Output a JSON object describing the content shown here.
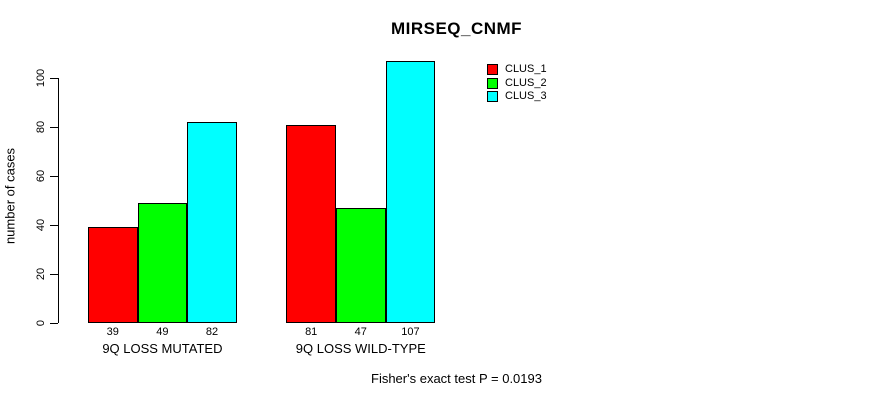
{
  "title": "MIRSEQ_CNMF",
  "ylabel": "number of cases",
  "footer": "Fisher's exact test P = 0.0193",
  "legend": {
    "items": [
      {
        "label": "CLUS_1",
        "color": "#ff0000"
      },
      {
        "label": "CLUS_2",
        "color": "#00ff00"
      },
      {
        "label": "CLUS_3",
        "color": "#00ffff"
      }
    ]
  },
  "chart_data": {
    "type": "bar",
    "grouped": true,
    "title": "MIRSEQ_CNMF",
    "xlabel": "",
    "ylabel": "number of cases",
    "categories": [
      "9Q LOSS MUTATED",
      "9Q LOSS WILD-TYPE"
    ],
    "series": [
      {
        "name": "CLUS_1",
        "color": "#ff0000",
        "values": [
          39,
          81
        ]
      },
      {
        "name": "CLUS_2",
        "color": "#00ff00",
        "values": [
          49,
          47
        ]
      },
      {
        "name": "CLUS_3",
        "color": "#00ffff",
        "values": [
          82,
          107
        ]
      }
    ],
    "bar_value_labels": [
      [
        39,
        49,
        82
      ],
      [
        81,
        47,
        107
      ]
    ],
    "yticks": [
      0,
      20,
      40,
      60,
      80,
      100
    ],
    "ylim": [
      0,
      111
    ],
    "grid": false,
    "legend_position": "top-right",
    "annotation": "Fisher's exact test P = 0.0193",
    "bar_colors": [
      "#ff0000",
      "#00ff00",
      "#00ffff"
    ],
    "axis_color": "#000000",
    "background_color": "#ffffff"
  }
}
